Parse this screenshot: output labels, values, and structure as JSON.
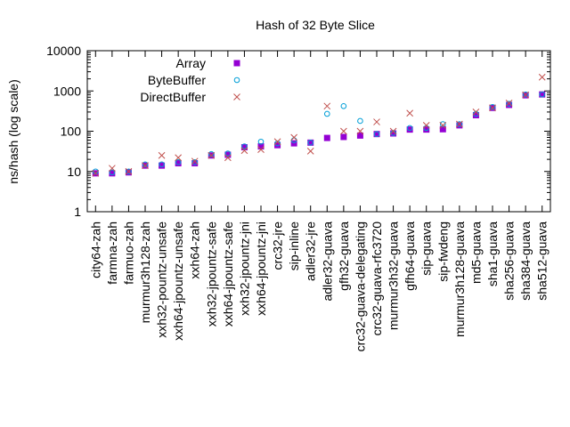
{
  "chart_data": {
    "type": "scatter",
    "title": "Hash of 32 Byte Slice",
    "xlabel": "",
    "ylabel": "ns/hash (log scale)",
    "y_scale": "log",
    "ylim": [
      1,
      10000
    ],
    "y_ticks": [
      "1",
      "10",
      "100",
      "1000",
      "10000"
    ],
    "grid": false,
    "legend_position": "top-left",
    "categories": [
      "city64-zah",
      "farmna-zah",
      "farmuo-zah",
      "murmur3h128-zah",
      "xxh32-pountz-unsafe",
      "xxh64-jpountz-unsafe",
      "xxh64-zah",
      "xxh32-jpountz-safe",
      "xxh64-jpountz-safe",
      "xxh32-jpountz-jni",
      "xxh64-jpountz-jni",
      "crc32-jre",
      "sip-inline",
      "adler32-jre",
      "adler32-guava",
      "gfh32-guava",
      "crc32-guava-delegating",
      "crc32-guava-rfc3720",
      "murmur3h32-guava",
      "gfh64-guava",
      "sip-guava",
      "sip-fwdeng",
      "murmur3h128-guava",
      "md5-guava",
      "sha1-guava",
      "sha256-guava",
      "sha384-guava",
      "sha512-guava"
    ],
    "series": [
      {
        "name": "Array",
        "marker": "filled-square",
        "color": "#9400d3",
        "values": [
          9,
          9,
          9.5,
          14,
          14,
          16,
          16,
          25,
          26,
          40,
          42,
          45,
          50,
          52,
          68,
          72,
          78,
          85,
          88,
          110,
          110,
          112,
          140,
          250,
          380,
          450,
          780,
          820
        ]
      },
      {
        "name": "ByteBuffer",
        "marker": "open-circle",
        "color": "#009ed7",
        "values": [
          10,
          9.5,
          10,
          15,
          15,
          17,
          17,
          27,
          28,
          42,
          55,
          50,
          60,
          52,
          270,
          420,
          180,
          85,
          90,
          120,
          120,
          150,
          150,
          270,
          400,
          480,
          820,
          820
        ]
      },
      {
        "name": "DirectBuffer",
        "marker": "cross",
        "color": "#c0504d",
        "values": [
          9,
          12,
          10,
          14,
          25,
          22,
          18,
          25,
          22,
          33,
          35,
          55,
          70,
          32,
          420,
          100,
          100,
          170,
          100,
          280,
          140,
          140,
          150,
          300,
          380,
          500,
          800,
          2200
        ]
      }
    ]
  }
}
